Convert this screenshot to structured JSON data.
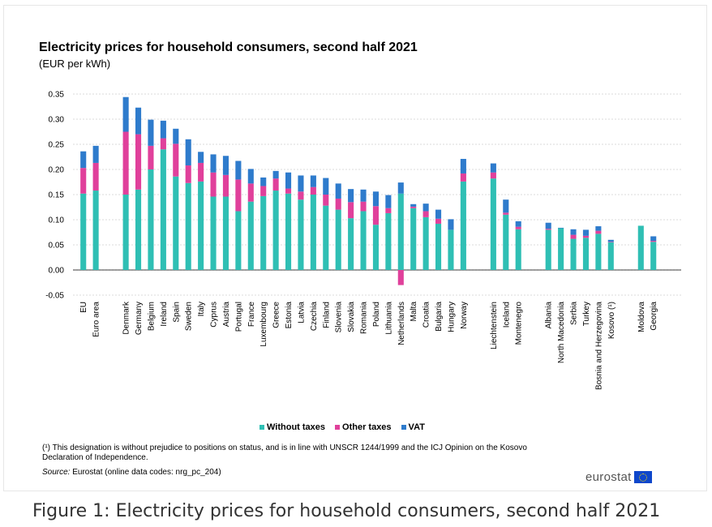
{
  "chart_data": {
    "type": "bar",
    "stacked": true,
    "title": "Electricity prices for household consumers, second half 2021",
    "subtitle": "(EUR per kWh)",
    "ylim": [
      -0.05,
      0.35
    ],
    "yticks": [
      "0.35",
      "0.30",
      "0.25",
      "0.20",
      "0.15",
      "0.10",
      "0.05",
      "0.00",
      "-0.05"
    ],
    "ytick_values": [
      0.35,
      0.3,
      0.25,
      0.2,
      0.15,
      0.1,
      0.05,
      0.0,
      -0.05
    ],
    "groups": [
      2,
      28,
      3,
      6,
      2,
      2
    ],
    "categories": [
      "EU",
      "Euro area",
      "Denmark",
      "Germany",
      "Belgium",
      "Ireland",
      "Spain",
      "Sweden",
      "Italy",
      "Cyprus",
      "Austria",
      "Portugal",
      "France",
      "Luxembourg",
      "Greece",
      "Estonia",
      "Latvia",
      "Czechia",
      "Finland",
      "Slovenia",
      "Slovakia",
      "Romania",
      "Poland",
      "Lithuania",
      "Netherlands",
      "Malta",
      "Croatia",
      "Bulgaria",
      "Hungary",
      "Norway",
      "Liechtenstein",
      "Iceland",
      "Montenegro",
      "Albania",
      "North Macedonia",
      "Serbia",
      "Turkey",
      "Bosnia and Herzegovina",
      "Kosovo (¹)",
      "Moldova",
      "Georgia"
    ],
    "series": [
      {
        "name": "Without taxes",
        "color": "#2fbfb4",
        "values": [
          0.152,
          0.158,
          0.15,
          0.16,
          0.2,
          0.24,
          0.186,
          0.173,
          0.176,
          0.146,
          0.146,
          0.117,
          0.136,
          0.147,
          0.158,
          0.152,
          0.14,
          0.15,
          0.128,
          0.12,
          0.103,
          0.117,
          0.09,
          0.113,
          0.152,
          0.123,
          0.105,
          0.092,
          0.08,
          0.176,
          0.182,
          0.11,
          0.081,
          0.08,
          0.083,
          0.062,
          0.064,
          0.072,
          0.055,
          0.088,
          0.056
        ]
      },
      {
        "name": "Other taxes",
        "color": "#e0409b",
        "values": [
          0.051,
          0.055,
          0.125,
          0.11,
          0.047,
          0.022,
          0.065,
          0.035,
          0.037,
          0.048,
          0.043,
          0.063,
          0.036,
          0.02,
          0.024,
          0.01,
          0.016,
          0.015,
          0.022,
          0.022,
          0.032,
          0.019,
          0.037,
          0.01,
          -0.03,
          0.003,
          0.012,
          0.01,
          0.0,
          0.016,
          0.012,
          0.004,
          0.005,
          0.002,
          0.0,
          0.008,
          0.004,
          0.006,
          0.001,
          0.0,
          0.002
        ]
      },
      {
        "name": "VAT",
        "color": "#2e7bcc",
        "values": [
          0.033,
          0.034,
          0.069,
          0.053,
          0.052,
          0.035,
          0.03,
          0.052,
          0.022,
          0.036,
          0.038,
          0.037,
          0.029,
          0.017,
          0.015,
          0.032,
          0.032,
          0.023,
          0.033,
          0.03,
          0.026,
          0.024,
          0.029,
          0.026,
          0.022,
          0.005,
          0.015,
          0.018,
          0.021,
          0.029,
          0.018,
          0.026,
          0.011,
          0.012,
          0.001,
          0.011,
          0.012,
          0.009,
          0.004,
          0.0,
          0.009
        ]
      }
    ],
    "xlabel": "",
    "ylabel": "",
    "grid": "horizontal",
    "legend": "bottom-center"
  },
  "legend": {
    "items": [
      {
        "label": "Without taxes",
        "color": "#2fbfb4"
      },
      {
        "label": "Other taxes",
        "color": "#e0409b"
      },
      {
        "label": "VAT",
        "color": "#2e7bcc"
      }
    ]
  },
  "footnote": "(¹) This designation is without prejudice to positions on status, and is in line with UNSCR 1244/1999 and the ICJ Opinion on the Kosovo Declaration of Independence.",
  "source": {
    "label": "Source:",
    "text": " Eurostat (online data codes: nrg_pc_204)"
  },
  "brand": "eurostat",
  "caption": "Figure 1: Electricity prices for household consumers, second half 2021"
}
